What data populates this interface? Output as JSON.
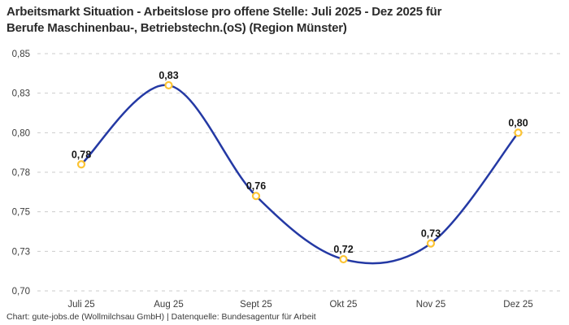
{
  "title": "Arbeitsmarkt Situation - Arbeitslose pro offene Stelle: Juli 2025 - Dez 2025 für\nBerufe Maschinenbau-, Betriebstechn.(oS) (Region Münster)",
  "footer": "Chart: gute-jobs.de (Wollmilchsau GmbH) | Datenquelle: Bundesagentur für Arbeit",
  "chart_data": {
    "type": "line",
    "title": "Arbeitsmarkt Situation - Arbeitslose pro offene Stelle: Juli 2025 - Dez 2025 für Berufe Maschinenbau-, Betriebstechn.(oS) (Region Münster)",
    "categories": [
      "Juli 25",
      "Aug 25",
      "Sept 25",
      "Okt 25",
      "Nov 25",
      "Dez 25"
    ],
    "values": [
      0.78,
      0.83,
      0.76,
      0.72,
      0.73,
      0.8
    ],
    "value_labels": [
      "0,78",
      "0,83",
      "0,76",
      "0,72",
      "0,73",
      "0,80"
    ],
    "xlabel": "",
    "ylabel": "",
    "ylim": [
      0.7,
      0.85
    ],
    "y_ticks": [
      0.7,
      0.725,
      0.75,
      0.775,
      0.8,
      0.825,
      0.85
    ],
    "y_tick_labels": [
      "0,70",
      "0,73",
      "0,75",
      "0,78",
      "0,80",
      "0,83",
      "0,85"
    ],
    "grid": "horizontal-dashed",
    "legend": "none",
    "curve": "smooth",
    "line_color": "#2439A4",
    "marker_stroke_color": "#FCC434",
    "marker_fill_color": "#ffffff",
    "grid_color": "#cbcbcb",
    "label_color": "#161616"
  }
}
